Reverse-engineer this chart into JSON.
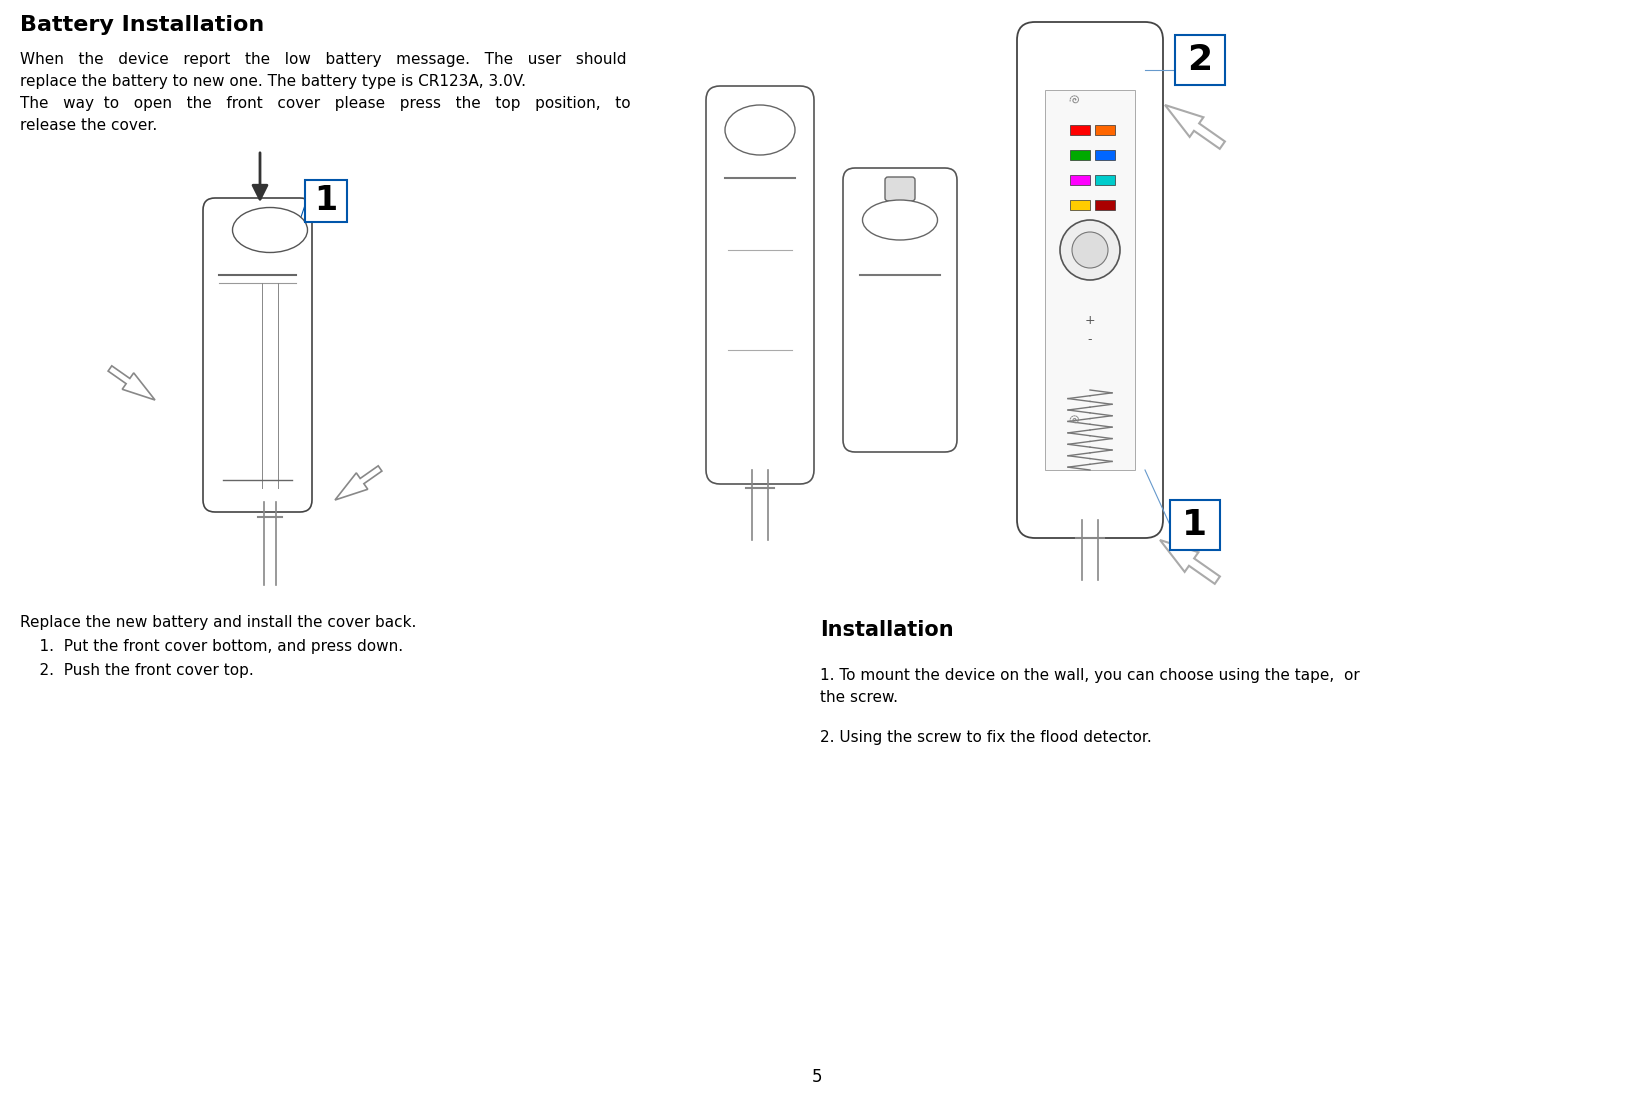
{
  "title": "Battery Installation",
  "para1_line1": "When   the   device   report   the   low   battery   message.   The   user   should",
  "para1_line2": "replace the battery to new one. The battery type is CR123A, 3.0V.",
  "para1_line3": "The   way  to   open   the   front   cover   please   press   the   top   position,   to",
  "para1_line4": "release the cover.",
  "replace_text": "Replace the new battery and install the cover back.",
  "item1": "    1.  Put the front cover bottom, and press down.",
  "item2": "    2.  Push the front cover top.",
  "install_title": "Installation",
  "install1a": "1. To mount the device on the wall, you can choose using the tape,  or",
  "install1b": "the screw.",
  "install2": "2. Using the screw to fix the flood detector.",
  "page_num": "5",
  "bg_color": "#ffffff",
  "text_color": "#000000",
  "title_fontsize": 14,
  "body_fontsize": 11,
  "label_fontsize": 20
}
